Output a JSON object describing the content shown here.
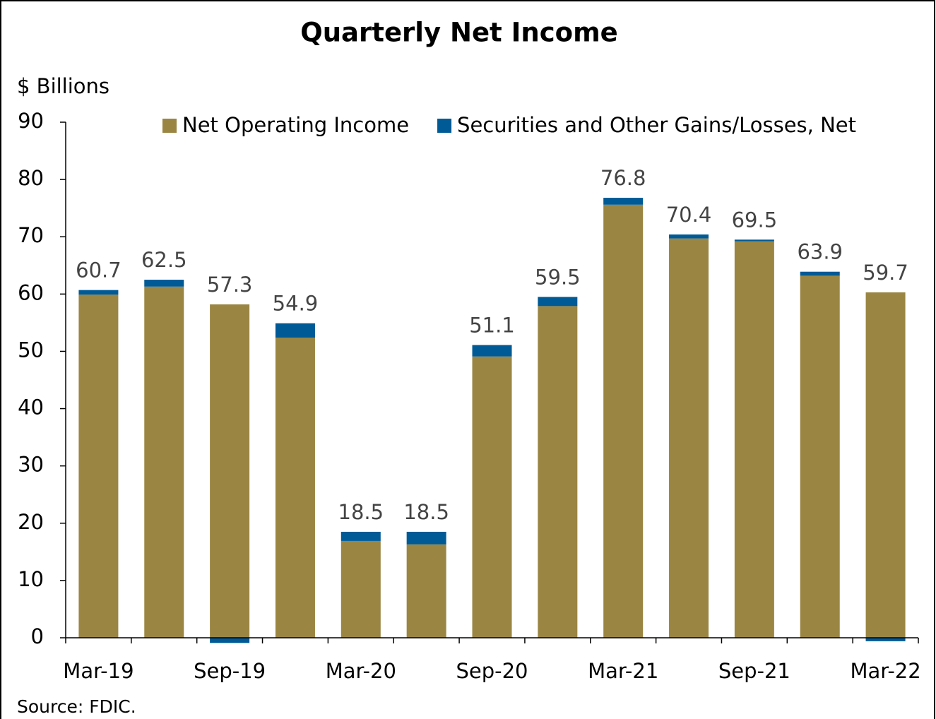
{
  "chart_data": {
    "type": "stacked_bar",
    "title": "Quarterly Net Income",
    "y_label": "$ Billions",
    "source": "Source: FDIC.",
    "categories": [
      "Mar-19",
      null,
      "Sep-19",
      null,
      "Mar-20",
      null,
      "Sep-20",
      null,
      "Mar-21",
      null,
      "Sep-21",
      null,
      "Mar-22"
    ],
    "series": [
      {
        "name": "Net Operating Income",
        "color": "#9a8542",
        "values": [
          59.9,
          61.3,
          58.2,
          52.4,
          16.9,
          16.3,
          49.1,
          57.9,
          75.6,
          69.7,
          69.2,
          63.2,
          60.3
        ]
      },
      {
        "name": "Securities and Other Gains/Losses, Net",
        "color": "#005a96",
        "values": [
          0.8,
          1.2,
          -0.9,
          2.5,
          1.6,
          2.2,
          2.0,
          1.6,
          1.2,
          0.7,
          0.3,
          0.7,
          -0.6
        ]
      }
    ],
    "total_labels": [
      "60.7",
      "62.5",
      "57.3",
      "54.9",
      "18.5",
      "18.5",
      "51.1",
      "59.5",
      "76.8",
      "70.4",
      "69.5",
      "63.9",
      "59.7"
    ],
    "ylim": [
      0,
      90
    ],
    "yticks": [
      0,
      10,
      20,
      30,
      40,
      50,
      60,
      70,
      80,
      90
    ],
    "legend": "top"
  }
}
